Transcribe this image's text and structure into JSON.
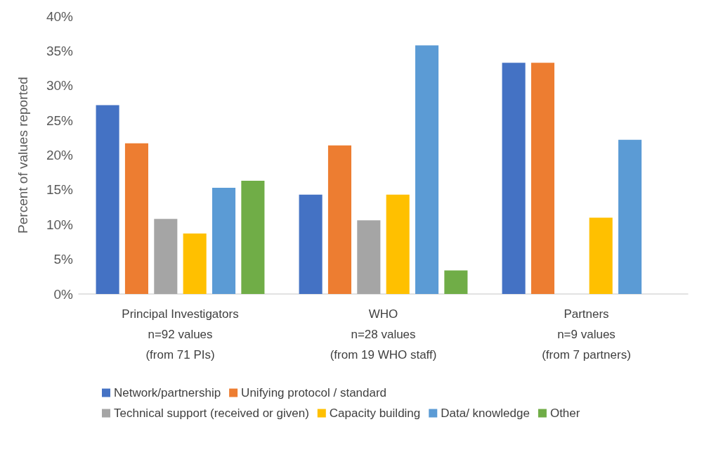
{
  "chart_data": {
    "type": "bar",
    "ylabel": "Percent of values reported",
    "categories": [
      "Principal Investigators\nn=92 values\n(from 71 PIs)",
      "WHO\nn=28 values\n(from 19 WHO staff)",
      "Partners\nn=9 values\n(from 7 partners)"
    ],
    "series": [
      {
        "name": "Network/partnership",
        "color": "#4472c4",
        "values": [
          27.2,
          14.3,
          33.3
        ]
      },
      {
        "name": "Unifying protocol / standard",
        "color": "#ed7d31",
        "values": [
          21.7,
          21.4,
          33.3
        ]
      },
      {
        "name": "Technical support (received or given)",
        "color": "#a5a5a5",
        "values": [
          10.8,
          10.6,
          0
        ]
      },
      {
        "name": "Capacity building",
        "color": "#ffc000",
        "values": [
          8.7,
          14.3,
          11.0
        ]
      },
      {
        "name": "Data/ knowledge",
        "color": "#5b9bd5",
        "values": [
          15.3,
          35.8,
          22.2
        ]
      },
      {
        "name": "Other",
        "color": "#70ad47",
        "values": [
          16.3,
          3.4,
          0
        ]
      }
    ],
    "ylim": [
      0,
      40
    ],
    "yticks": [
      {
        "value": 0,
        "label": "0%"
      },
      {
        "value": 5,
        "label": "5%"
      },
      {
        "value": 10,
        "label": "10%"
      },
      {
        "value": 15,
        "label": "15%"
      },
      {
        "value": 20,
        "label": "20%"
      },
      {
        "value": 25,
        "label": "25%"
      },
      {
        "value": 30,
        "label": "30%"
      },
      {
        "value": 35,
        "label": "35%"
      },
      {
        "value": 40,
        "label": "40%"
      }
    ],
    "grid": false,
    "legend": "bottom"
  }
}
